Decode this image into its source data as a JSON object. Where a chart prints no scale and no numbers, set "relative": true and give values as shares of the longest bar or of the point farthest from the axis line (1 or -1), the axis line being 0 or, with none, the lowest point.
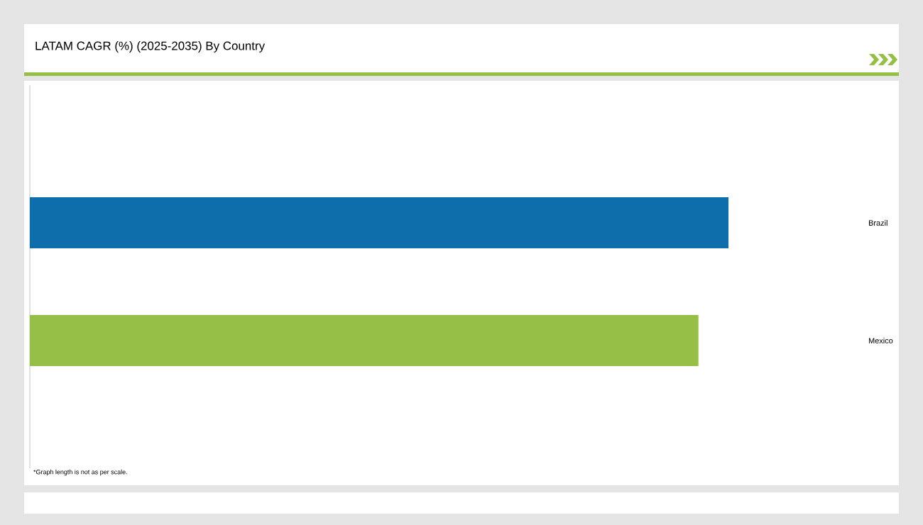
{
  "chart_data": {
    "type": "bar",
    "orientation": "horizontal",
    "relative": true,
    "title": "LATAM CAGR (%) (2025-2035) By Country",
    "categories": [
      "Brazil",
      "Mexico"
    ],
    "values": [
      1,
      0.957
    ],
    "colors": [
      "#0e6eab",
      "#96bf48"
    ],
    "annotations": [
      "*Graph length is not as per scale."
    ]
  }
}
